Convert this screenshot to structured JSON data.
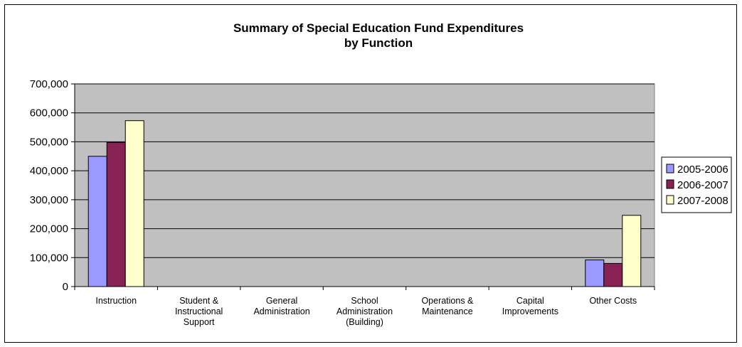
{
  "chart_data": {
    "type": "bar",
    "title": [
      "Summary of Special Education Fund Expenditures",
      "by Function"
    ],
    "xlabel": "",
    "ylabel": "",
    "ylim": [
      0,
      700000
    ],
    "yticks": [
      0,
      100000,
      200000,
      300000,
      400000,
      500000,
      600000,
      700000
    ],
    "ytick_labels": [
      "0",
      "100,000",
      "200,000",
      "300,000",
      "400,000",
      "500,000",
      "600,000",
      "700,000"
    ],
    "categories": [
      [
        "Instruction"
      ],
      [
        "Student &",
        "Instructional",
        "Support"
      ],
      [
        "General",
        "Administration"
      ],
      [
        "School",
        "Administration",
        "(Building)"
      ],
      [
        "Operations &",
        "Maintenance"
      ],
      [
        "Capital",
        "Improvements"
      ],
      [
        "Other Costs"
      ]
    ],
    "series": [
      {
        "name": "2005-2006",
        "color": "#9999ff",
        "values": [
          450000,
          0,
          0,
          0,
          0,
          0,
          92000
        ]
      },
      {
        "name": "2006-2007",
        "color": "#882255",
        "values": [
          498000,
          0,
          0,
          0,
          0,
          0,
          80000
        ]
      },
      {
        "name": "2007-2008",
        "color": "#ffffcc",
        "values": [
          573000,
          0,
          0,
          0,
          0,
          0,
          246000
        ]
      }
    ],
    "grid": true,
    "plot_background": "#c0c0c0",
    "legend_position": "right"
  }
}
